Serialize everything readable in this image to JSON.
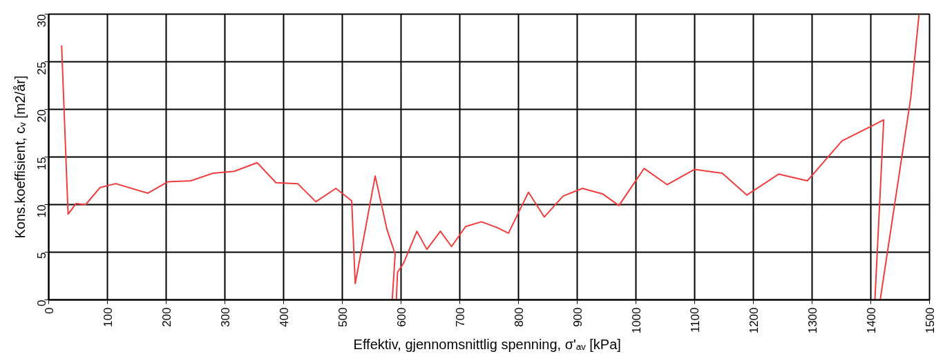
{
  "chart_data": {
    "type": "line",
    "xlabel": "Effektiv, gjennomsnittlig spenning, σ'ₐᵥ  [kPa]",
    "ylabel": "Kons.koeffisient, cᵥ [m2/år]",
    "xlim": [
      0,
      1500
    ],
    "ylim": [
      0,
      30
    ],
    "xticks": [
      0,
      100,
      200,
      300,
      400,
      500,
      600,
      700,
      800,
      900,
      1000,
      1100,
      1200,
      1300,
      1400,
      1500
    ],
    "yticks": [
      0,
      5,
      10,
      15,
      20,
      25,
      30
    ],
    "grid": true,
    "marker": "none",
    "line_style": "solid",
    "series": [
      {
        "color": "#f03c3c",
        "x": [
          22,
          33,
          46.5,
          63,
          87.6,
          114,
          169,
          203,
          242,
          280,
          316,
          355,
          387,
          424,
          455,
          489,
          516,
          522,
          556,
          576,
          590,
          585,
          588,
          592,
          594,
          604,
          627,
          644,
          667,
          686,
          710,
          737,
          763,
          783,
          817,
          844,
          876,
          909,
          944,
          971,
          1014,
          1053,
          1100,
          1147,
          1189,
          1243,
          1292,
          1351,
          1422,
          1407,
          1411,
          1416,
          1468,
          1482
        ],
        "values": [
          26.7,
          9.0,
          10.1,
          10.0,
          11.8,
          12.2,
          11.2,
          12.4,
          12.5,
          13.3,
          13.5,
          14.4,
          12.3,
          12.2,
          10.3,
          11.7,
          10.4,
          1.7,
          13.0,
          7.4,
          4.8,
          0,
          null,
          0,
          2.9,
          3.8,
          7.2,
          5.3,
          7.2,
          5.6,
          7.7,
          8.2,
          7.6,
          7.0,
          11.3,
          8.7,
          10.9,
          11.7,
          11.1,
          9.9,
          13.8,
          12.1,
          13.7,
          13.3,
          11.0,
          13.2,
          12.5,
          16.7,
          18.9,
          0,
          null,
          0,
          21.2,
          29.9
        ]
      }
    ]
  }
}
